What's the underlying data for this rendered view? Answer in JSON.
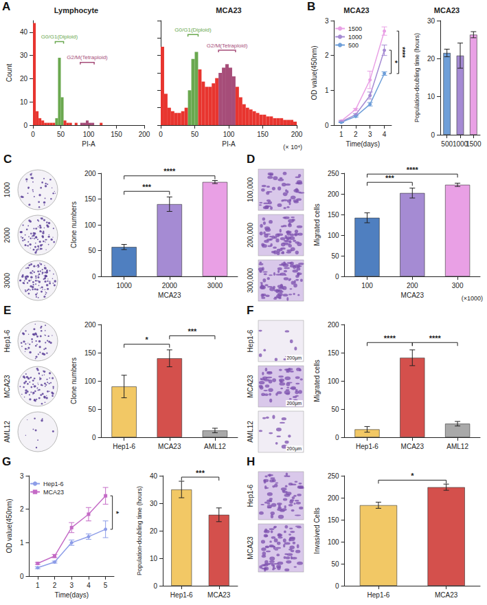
{
  "chart_data": [
    {
      "panel": "A",
      "type": "histogram",
      "title": "Lymphocyte",
      "x_label": "PI-A",
      "y_label": "Count",
      "bins": [
        0,
        5,
        10,
        15,
        20,
        25,
        30,
        35,
        40,
        45,
        50,
        55,
        60,
        65,
        70,
        75,
        80,
        85,
        90,
        95,
        100,
        105,
        110,
        115,
        120,
        125,
        130,
        135,
        140,
        145,
        150,
        155,
        160,
        165,
        170,
        175,
        180,
        185,
        190,
        195,
        200
      ],
      "counts": [
        44,
        6,
        3,
        2,
        1,
        1,
        1,
        1,
        3,
        29,
        12,
        2,
        1,
        1,
        0,
        1,
        0,
        1,
        1,
        2,
        1,
        1,
        0,
        0,
        1,
        0,
        0,
        0,
        0,
        0,
        0,
        0,
        0,
        0,
        0,
        0,
        0,
        0,
        0,
        0
      ],
      "color": "#e8352f",
      "xlim": [
        0,
        200
      ],
      "xticks": [
        0,
        50,
        100,
        150,
        200
      ],
      "ylim": [
        0,
        45
      ],
      "yticks": [
        0,
        10,
        20,
        30,
        40
      ],
      "grid": false,
      "gates": [
        {
          "label": "G0/G1(Diploid)",
          "range": [
            40,
            55
          ],
          "y": 36,
          "color": "#6aa84f"
        },
        {
          "label": "G2/M(Tetraploid)",
          "range": [
            85,
            110
          ],
          "y": 27,
          "color": "#a64d79"
        }
      ]
    },
    {
      "type": "histogram",
      "title": "MCA23",
      "x_label": "PI-A",
      "x_note": "(× 10⁴)",
      "bins": [
        0,
        5,
        10,
        15,
        20,
        25,
        30,
        35,
        40,
        45,
        50,
        55,
        60,
        65,
        70,
        75,
        80,
        85,
        90,
        95,
        100,
        105,
        110,
        115,
        120,
        125,
        130,
        135,
        140,
        145,
        150,
        155,
        160,
        165,
        170,
        175,
        180,
        185,
        190,
        195,
        200
      ],
      "counts": [
        45,
        18,
        10,
        8,
        7,
        7,
        8,
        10,
        20,
        38,
        42,
        32,
        25,
        22,
        22,
        24,
        27,
        30,
        33,
        35,
        33,
        28,
        22,
        16,
        12,
        10,
        9,
        8,
        7,
        6,
        6,
        5,
        5,
        4,
        4,
        4,
        3,
        3,
        3,
        2
      ],
      "color": "#e8352f",
      "xlim": [
        0,
        200
      ],
      "xticks": [
        0,
        50,
        100,
        150,
        200
      ],
      "ylim": [
        0,
        60
      ],
      "yticks": [
        0,
        10,
        20,
        30,
        40,
        50,
        60
      ],
      "grid": false,
      "tick_labels": "x",
      "gates": [
        {
          "label": "G0/G1(Diploid)",
          "range": [
            40,
            55
          ],
          "y": 52,
          "color": "#6aa84f"
        },
        {
          "label": "G2/M(Tetraploid)",
          "range": [
            85,
            110
          ],
          "y": 43,
          "color": "#a64d79"
        }
      ]
    },
    {
      "panel": "B",
      "type": "line",
      "title": "MCA23",
      "x_label": "Time(days)",
      "y_label": "OD value(450nm)",
      "categories": [
        "1",
        "2",
        "3",
        "4"
      ],
      "series": [
        {
          "name": "1500",
          "color": "#e9a0e5",
          "marker": "circle",
          "values": [
            0.12,
            0.45,
            1.3,
            2.7
          ],
          "errors": [
            0.02,
            0.03,
            0.25,
            0.12
          ]
        },
        {
          "name": "1000",
          "color": "#a58bd3",
          "marker": "circle",
          "values": [
            0.1,
            0.3,
            0.85,
            2.15
          ],
          "errors": [
            0.02,
            0.03,
            0.1,
            0.15
          ]
        },
        {
          "name": "500",
          "color": "#6f9fd9",
          "marker": "circle",
          "values": [
            0.08,
            0.25,
            0.6,
            1.48
          ],
          "errors": [
            0.01,
            0.02,
            0.05,
            0.05
          ]
        }
      ],
      "ylim": [
        0,
        3
      ],
      "yticks": [
        0,
        1,
        2,
        3
      ],
      "grid": false,
      "legend": "top-left",
      "significance": [
        {
          "series": [
            "1000",
            "500"
          ],
          "label": "*"
        },
        {
          "series": [
            "1500",
            "500"
          ],
          "label": "****"
        }
      ]
    },
    {
      "type": "bar",
      "title": "MCA23",
      "y_label": "Population-doubling time (hours)",
      "categories": [
        "500",
        "1000",
        "1500"
      ],
      "values": [
        21.5,
        20.8,
        26.3
      ],
      "errors": [
        1.0,
        3.3,
        0.8
      ],
      "colors": [
        "#6f9fd9",
        "#a58bd3",
        "#e9a0e5"
      ],
      "ylim": [
        0,
        30
      ],
      "yticks": [
        0,
        10,
        20,
        30
      ],
      "grid": false
    },
    {
      "panel": "C",
      "type": "bar",
      "images": {
        "kind": "plate",
        "labels": [
          "1000",
          "2000",
          "3000"
        ]
      },
      "x_label": "MCA23",
      "y_label": "Clone numbers",
      "categories": [
        "1000",
        "2000",
        "3000"
      ],
      "values": [
        57,
        140,
        183
      ],
      "errors": [
        5,
        14,
        3
      ],
      "colors": [
        "#4f7fc0",
        "#a58bd3",
        "#e9a0e5"
      ],
      "ylim": [
        0,
        200
      ],
      "yticks": [
        0,
        50,
        100,
        150,
        200
      ],
      "grid": false,
      "significance": [
        {
          "categories": [
            "1000",
            "2000"
          ],
          "y": 165,
          "label": "***"
        },
        {
          "categories": [
            "1000",
            "3000"
          ],
          "y": 195,
          "label": "****"
        }
      ]
    },
    {
      "panel": "D",
      "type": "bar",
      "images": {
        "kind": "micrograph",
        "labels": [
          "100,000",
          "200,000",
          "300,000"
        ]
      },
      "x_label": "MCA23",
      "x_note": "(×1000)",
      "y_label": "Migrated cells",
      "categories": [
        "100",
        "200",
        "300"
      ],
      "values": [
        142,
        202,
        222
      ],
      "errors": [
        12,
        12,
        4
      ],
      "colors": [
        "#4f7fc0",
        "#a58bd3",
        "#e9a0e5"
      ],
      "ylim": [
        0,
        250
      ],
      "yticks": [
        0,
        50,
        100,
        150,
        200,
        250
      ],
      "grid": false,
      "significance": [
        {
          "categories": [
            "100",
            "200"
          ],
          "y": 228,
          "label": "***"
        },
        {
          "categories": [
            "100",
            "300"
          ],
          "y": 248,
          "label": "****"
        }
      ]
    },
    {
      "panel": "E",
      "type": "bar",
      "images": {
        "kind": "plate",
        "labels": [
          "Hep1-6",
          "MCA23",
          "AML12"
        ]
      },
      "y_label": "Clone numbers",
      "categories": [
        "Hep1-6",
        "MCA23",
        "AML12"
      ],
      "values": [
        90,
        140,
        12
      ],
      "errors": [
        20,
        15,
        4
      ],
      "colors": [
        "#f2c865",
        "#d4504c",
        "#a9a9a9"
      ],
      "ylim": [
        0,
        200
      ],
      "yticks": [
        0,
        50,
        100,
        150,
        200
      ],
      "grid": false,
      "significance": [
        {
          "categories": [
            "Hep1-6",
            "MCA23"
          ],
          "y": 165,
          "label": "*"
        },
        {
          "categories": [
            "MCA23",
            "AML12"
          ],
          "y": 180,
          "label": "***"
        }
      ]
    },
    {
      "panel": "F",
      "type": "bar",
      "images": {
        "kind": "micrograph",
        "labels": [
          "Hep1-6",
          "MCA23",
          "AML12"
        ],
        "scale": "200μm"
      },
      "y_label": "Migrated cells",
      "categories": [
        "Hep1-6",
        "MCA23",
        "AML12"
      ],
      "values": [
        14,
        141,
        24
      ],
      "errors": [
        5,
        14,
        4
      ],
      "colors": [
        "#f2c865",
        "#d4504c",
        "#a9a9a9"
      ],
      "ylim": [
        0,
        200
      ],
      "yticks": [
        0,
        50,
        100,
        150,
        200
      ],
      "grid": false,
      "significance": [
        {
          "categories": [
            "Hep1-6",
            "MCA23"
          ],
          "y": 168,
          "label": "****"
        },
        {
          "categories": [
            "MCA23",
            "AML12"
          ],
          "y": 168,
          "label": "****"
        }
      ]
    },
    {
      "panel": "G",
      "type": "line",
      "x_label": "Time(days)",
      "y_label": "OD value(450nm)",
      "categories": [
        "1",
        "2",
        "3",
        "4",
        "5"
      ],
      "series": [
        {
          "name": "Hep1-6",
          "color": "#8d9de8",
          "marker": "circle",
          "values": [
            0.25,
            0.42,
            1.0,
            1.18,
            1.4
          ],
          "errors": [
            0.03,
            0.03,
            0.08,
            0.08,
            0.25
          ]
        },
        {
          "name": "MCA23",
          "color": "#c46bc6",
          "marker": "rect",
          "values": [
            0.38,
            0.6,
            1.45,
            1.85,
            2.4
          ],
          "errors": [
            0.03,
            0.05,
            0.15,
            0.2,
            0.25
          ]
        }
      ],
      "ylim": [
        0,
        3
      ],
      "yticks": [
        0,
        1,
        2,
        3
      ],
      "grid": false,
      "legend": "top-left",
      "significance": [
        {
          "series": [
            "Hep1-6",
            "MCA23"
          ],
          "label": "*"
        }
      ]
    },
    {
      "type": "bar",
      "y_label": "Population-doubling time (hours)",
      "categories": [
        "Hep1-6",
        "MCA23"
      ],
      "values": [
        35,
        25.8
      ],
      "errors": [
        3,
        2.5
      ],
      "colors": [
        "#f2c865",
        "#d4504c"
      ],
      "ylim": [
        0,
        40
      ],
      "yticks": [
        0,
        10,
        20,
        30,
        40
      ],
      "grid": false,
      "significance": [
        {
          "categories": [
            "Hep1-6",
            "MCA23"
          ],
          "y": 39.5,
          "label": "***"
        }
      ]
    },
    {
      "panel": "H",
      "type": "bar",
      "images": {
        "kind": "micrograph",
        "labels": [
          "Hep1-6",
          "MCA23"
        ]
      },
      "y_label": "Invasived Cells",
      "categories": [
        "Hep1-6",
        "MCA23"
      ],
      "values": [
        183,
        224
      ],
      "errors": [
        7,
        7
      ],
      "colors": [
        "#f2c865",
        "#d4504c"
      ],
      "ylim": [
        0,
        250
      ],
      "yticks": [
        0,
        50,
        100,
        150,
        200,
        250
      ],
      "grid": false,
      "significance": [
        {
          "categories": [
            "Hep1-6",
            "MCA23"
          ],
          "y": 240,
          "label": "*"
        }
      ]
    }
  ]
}
